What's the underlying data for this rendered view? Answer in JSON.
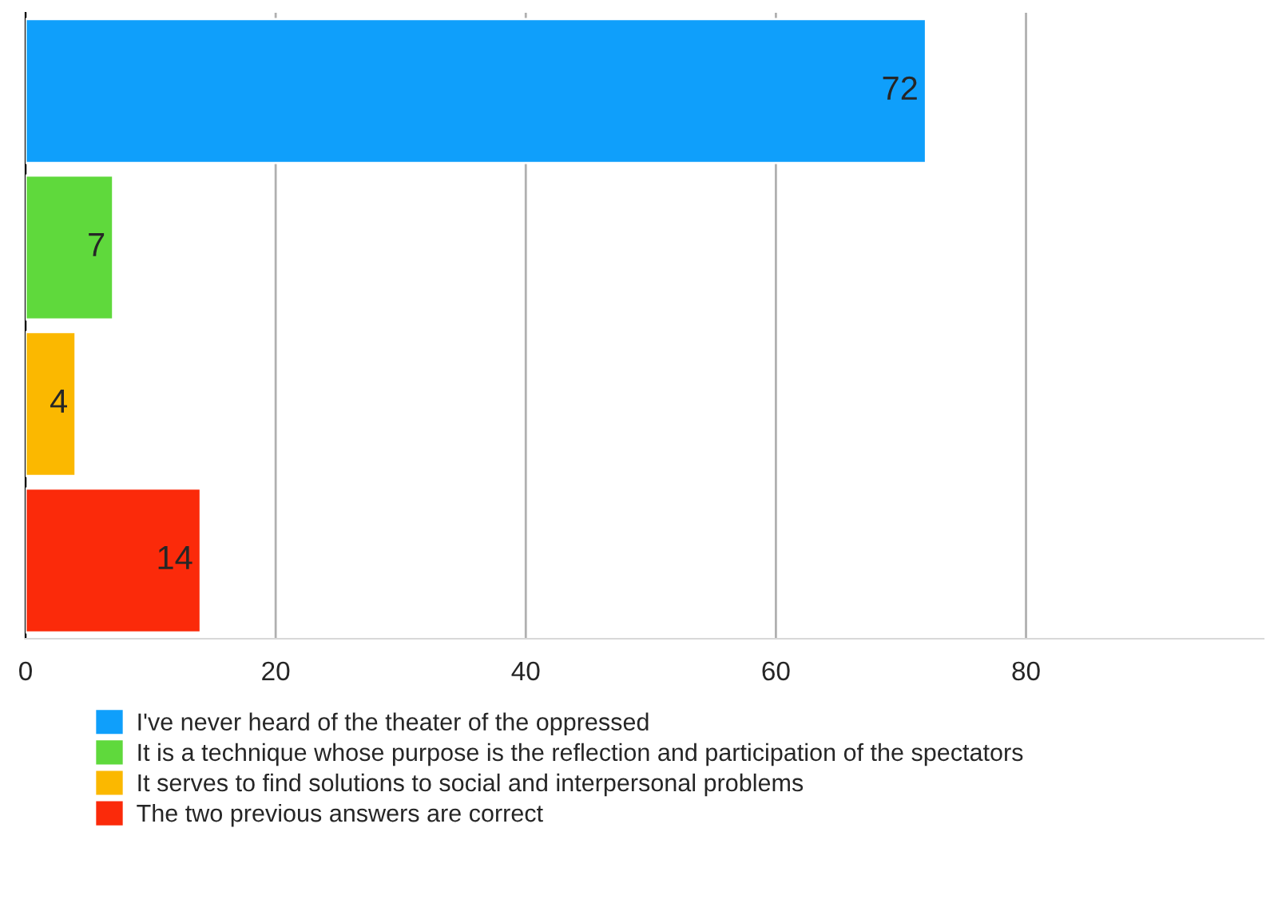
{
  "chart_data": {
    "type": "bar",
    "orientation": "horizontal",
    "categories": [
      null,
      null,
      null,
      null
    ],
    "series": [
      {
        "name": "I've never heard of the theater of the oppressed",
        "color": "#0f9ffb",
        "values": [
          72,
          null,
          null,
          null
        ]
      },
      {
        "name": "It is a technique whose purpose is the reflection and participation of the spectators",
        "color": "#5fd93c",
        "values": [
          null,
          7,
          null,
          null
        ]
      },
      {
        "name": "It serves to find solutions to social and interpersonal problems",
        "color": "#fbb800",
        "values": [
          null,
          null,
          4,
          null
        ]
      },
      {
        "name": "The two previous answers are correct",
        "color": "#fb2a0a",
        "values": [
          null,
          null,
          null,
          14
        ]
      }
    ],
    "xlim": [
      0,
      99
    ],
    "xticks": [
      0,
      20,
      40,
      60,
      80
    ],
    "grid": "x",
    "legend": "bottom",
    "data_labels": true
  }
}
